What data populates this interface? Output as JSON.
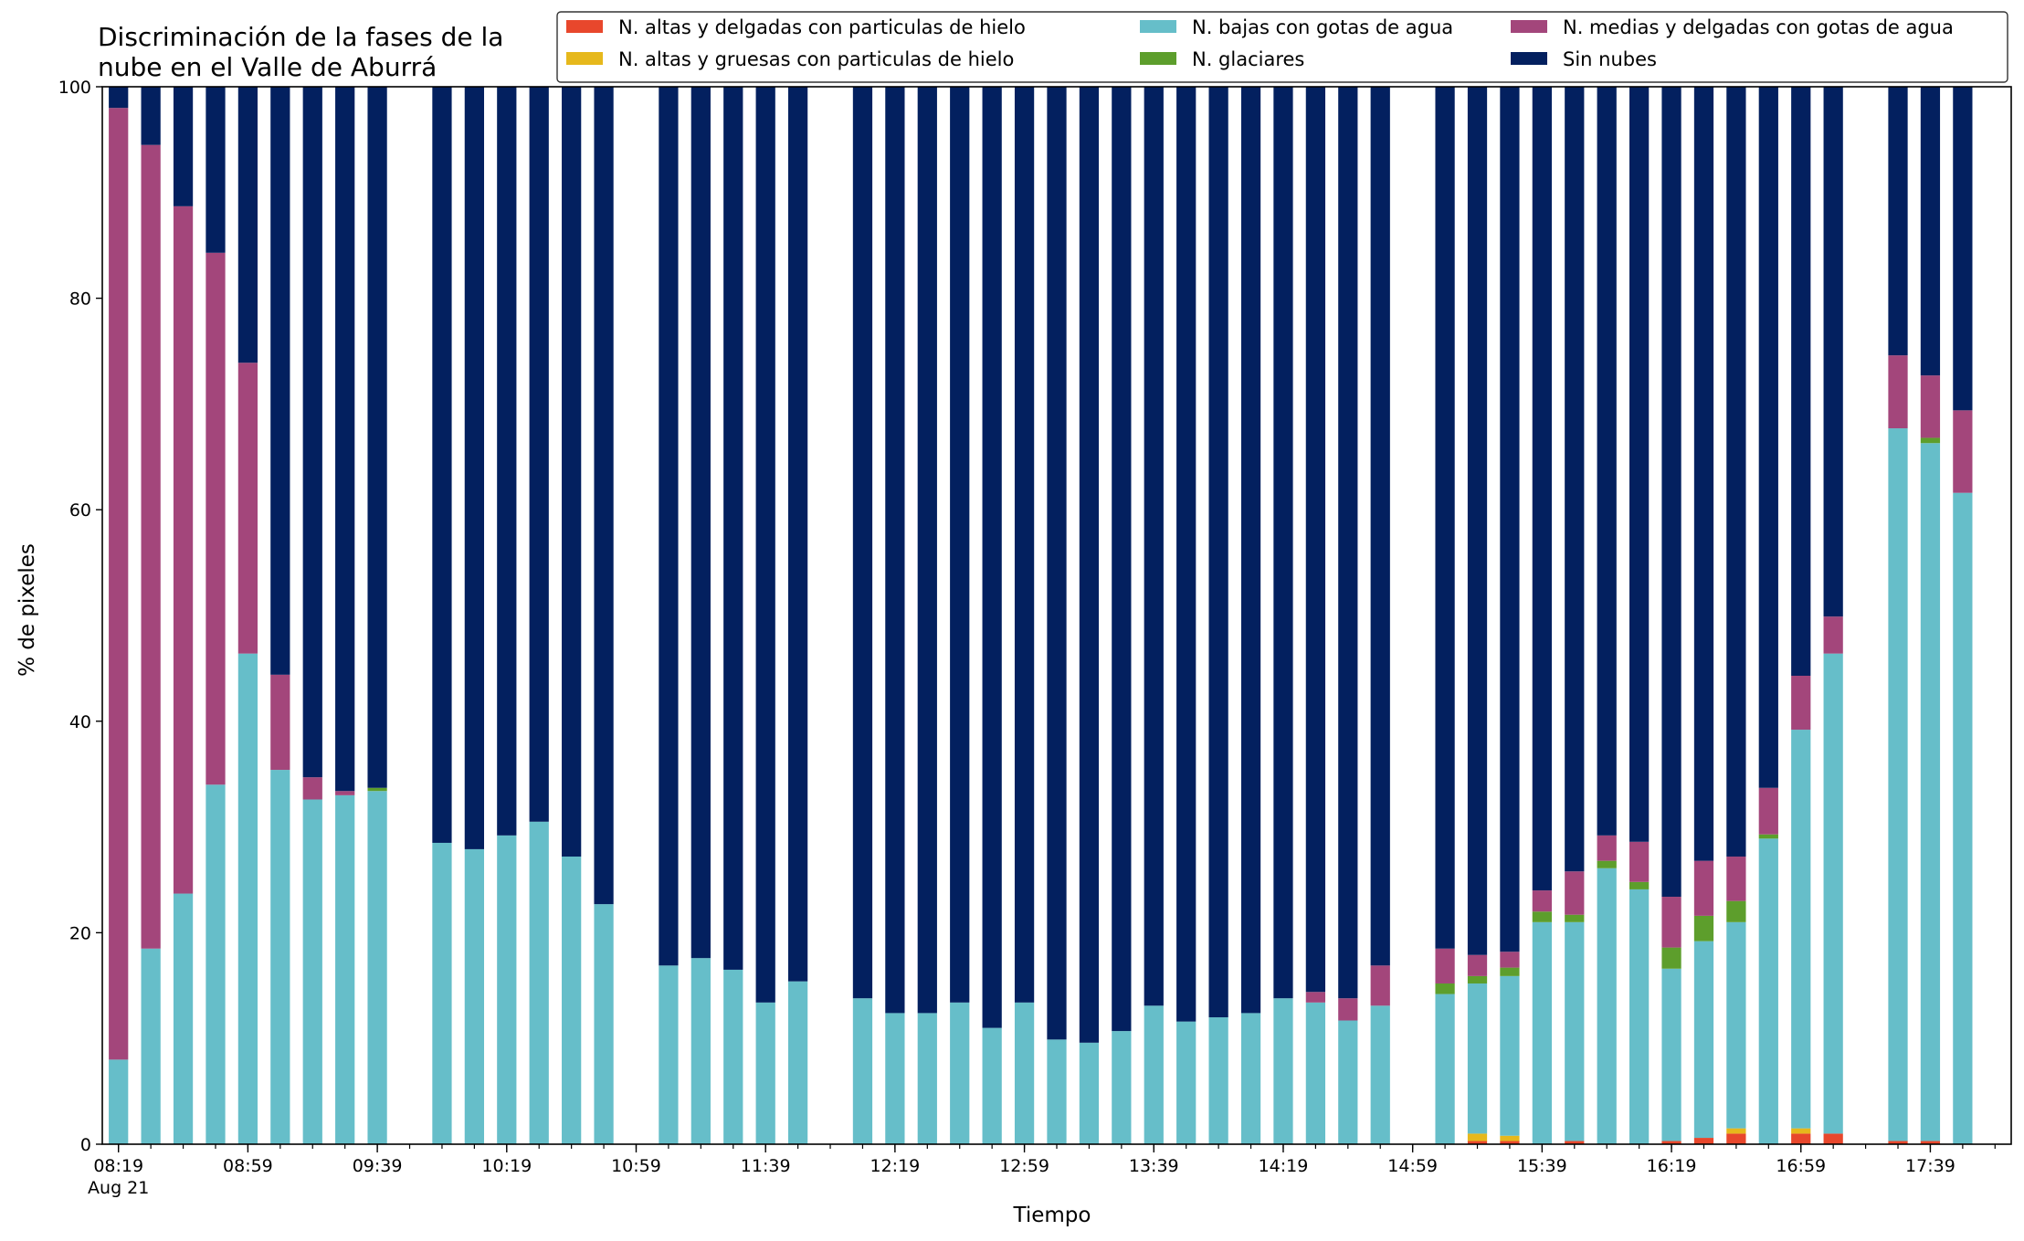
{
  "chart_data": {
    "type": "bar",
    "stacked": true,
    "title_lines": [
      "Discriminación de la fases de la",
      "nube en el Valle de Aburrá"
    ],
    "xlabel": "Tiempo",
    "ylabel": "% de pixeles",
    "ylim": [
      0,
      100
    ],
    "yticks": [
      0,
      20,
      40,
      60,
      80,
      100
    ],
    "ytick_labels": [
      "0",
      "20",
      "40",
      "60",
      "80",
      "100"
    ],
    "xlim": [
      "08:14",
      "18:04"
    ],
    "bar_width_minutes": 6,
    "xtick_labels": [
      {
        "time": "08:19",
        "label": "08:19",
        "sublabel": "Aug 21"
      },
      {
        "time": "08:59",
        "label": "08:59"
      },
      {
        "time": "09:39",
        "label": "09:39"
      },
      {
        "time": "10:19",
        "label": "10:19"
      },
      {
        "time": "10:59",
        "label": "10:59"
      },
      {
        "time": "11:39",
        "label": "11:39"
      },
      {
        "time": "12:19",
        "label": "12:19"
      },
      {
        "time": "12:59",
        "label": "12:59"
      },
      {
        "time": "13:39",
        "label": "13:39"
      },
      {
        "time": "14:19",
        "label": "14:19"
      },
      {
        "time": "14:59",
        "label": "14:59"
      },
      {
        "time": "15:39",
        "label": "15:39"
      },
      {
        "time": "16:19",
        "label": "16:19"
      },
      {
        "time": "16:59",
        "label": "16:59"
      },
      {
        "time": "17:39",
        "label": "17:39"
      }
    ],
    "minor_tick_step_minutes": 10,
    "legend_position": "top-right",
    "legend_columns": 3,
    "series": [
      {
        "name": "N. altas y delgadas con particulas de hielo",
        "color": "#e8472c"
      },
      {
        "name": "N. altas y gruesas con particulas de hielo",
        "color": "#e6b81c"
      },
      {
        "name": "N. bajas con gotas de agua",
        "color": "#66bec9"
      },
      {
        "name": "N. glaciares",
        "color": "#5d9e2c"
      },
      {
        "name": "N. medias y delgadas con gotas de agua",
        "color": "#a3467b"
      },
      {
        "name": "Sin nubes",
        "color": "#03205f"
      }
    ],
    "bars": [
      {
        "time": "08:19",
        "values": [
          0,
          0,
          8.0,
          0,
          90.0,
          2.0
        ]
      },
      {
        "time": "08:29",
        "values": [
          0,
          0,
          18.5,
          0,
          76.0,
          5.5
        ]
      },
      {
        "time": "08:39",
        "values": [
          0,
          0,
          23.7,
          0,
          65.0,
          11.3
        ]
      },
      {
        "time": "08:49",
        "values": [
          0,
          0,
          34.0,
          0,
          50.3,
          15.7
        ]
      },
      {
        "time": "08:59",
        "values": [
          0,
          0,
          46.4,
          0,
          27.5,
          26.1
        ]
      },
      {
        "time": "09:09",
        "values": [
          0,
          0,
          35.4,
          0,
          9.0,
          55.6
        ]
      },
      {
        "time": "09:19",
        "values": [
          0,
          0,
          32.6,
          0,
          2.1,
          65.3
        ]
      },
      {
        "time": "09:29",
        "values": [
          0,
          0,
          33.0,
          0,
          0.4,
          66.6
        ]
      },
      {
        "time": "09:39",
        "values": [
          0,
          0,
          33.4,
          0.3,
          0,
          66.3
        ]
      },
      {
        "time": "09:59",
        "values": [
          0,
          0,
          28.5,
          0,
          0,
          71.5
        ]
      },
      {
        "time": "10:09",
        "values": [
          0,
          0,
          27.9,
          0,
          0,
          72.1
        ]
      },
      {
        "time": "10:19",
        "values": [
          0,
          0,
          29.2,
          0,
          0,
          70.8
        ]
      },
      {
        "time": "10:29",
        "values": [
          0,
          0,
          30.5,
          0,
          0,
          69.5
        ]
      },
      {
        "time": "10:39",
        "values": [
          0,
          0,
          27.2,
          0,
          0,
          72.8
        ]
      },
      {
        "time": "10:49",
        "values": [
          0,
          0,
          22.7,
          0,
          0,
          77.3
        ]
      },
      {
        "time": "11:09",
        "values": [
          0,
          0,
          16.9,
          0,
          0,
          83.1
        ]
      },
      {
        "time": "11:19",
        "values": [
          0,
          0,
          17.6,
          0,
          0,
          82.4
        ]
      },
      {
        "time": "11:29",
        "values": [
          0,
          0,
          16.5,
          0,
          0,
          83.5
        ]
      },
      {
        "time": "11:39",
        "values": [
          0,
          0,
          13.4,
          0,
          0,
          86.6
        ]
      },
      {
        "time": "11:49",
        "values": [
          0,
          0,
          15.4,
          0,
          0,
          84.6
        ]
      },
      {
        "time": "12:09",
        "values": [
          0,
          0,
          13.8,
          0,
          0,
          86.2
        ]
      },
      {
        "time": "12:19",
        "values": [
          0,
          0,
          12.4,
          0,
          0,
          87.6
        ]
      },
      {
        "time": "12:29",
        "values": [
          0,
          0,
          12.4,
          0,
          0,
          87.6
        ]
      },
      {
        "time": "12:39",
        "values": [
          0,
          0,
          13.4,
          0,
          0,
          86.6
        ]
      },
      {
        "time": "12:49",
        "values": [
          0,
          0,
          11.0,
          0,
          0,
          89.0
        ]
      },
      {
        "time": "12:59",
        "values": [
          0,
          0,
          13.4,
          0,
          0,
          86.6
        ]
      },
      {
        "time": "13:09",
        "values": [
          0,
          0,
          9.9,
          0,
          0,
          90.1
        ]
      },
      {
        "time": "13:19",
        "values": [
          0,
          0,
          9.6,
          0,
          0,
          90.4
        ]
      },
      {
        "time": "13:29",
        "values": [
          0,
          0,
          10.7,
          0,
          0,
          89.3
        ]
      },
      {
        "time": "13:39",
        "values": [
          0,
          0,
          13.1,
          0,
          0,
          86.9
        ]
      },
      {
        "time": "13:49",
        "values": [
          0,
          0,
          11.6,
          0,
          0,
          88.4
        ]
      },
      {
        "time": "13:59",
        "values": [
          0,
          0,
          12.0,
          0,
          0,
          88.0
        ]
      },
      {
        "time": "14:09",
        "values": [
          0,
          0,
          12.4,
          0,
          0,
          87.6
        ]
      },
      {
        "time": "14:19",
        "values": [
          0,
          0,
          13.8,
          0,
          0,
          86.2
        ]
      },
      {
        "time": "14:29",
        "values": [
          0,
          0,
          13.4,
          0,
          1.0,
          85.6
        ]
      },
      {
        "time": "14:39",
        "values": [
          0,
          0,
          11.7,
          0,
          2.1,
          86.2
        ]
      },
      {
        "time": "14:49",
        "values": [
          0,
          0,
          13.1,
          0,
          3.8,
          83.1
        ]
      },
      {
        "time": "15:09",
        "values": [
          0,
          0,
          14.2,
          1.0,
          3.3,
          81.5
        ]
      },
      {
        "time": "15:19",
        "values": [
          0.3,
          0.7,
          14.2,
          0.7,
          2.0,
          82.1
        ]
      },
      {
        "time": "15:29",
        "values": [
          0.3,
          0.5,
          15.1,
          0.8,
          1.5,
          81.8
        ]
      },
      {
        "time": "15:39",
        "values": [
          0,
          0,
          21.0,
          1.0,
          2.0,
          76.0
        ]
      },
      {
        "time": "15:49",
        "values": [
          0.3,
          0,
          20.7,
          0.7,
          4.1,
          74.2
        ]
      },
      {
        "time": "15:59",
        "values": [
          0,
          0,
          26.1,
          0.7,
          2.4,
          70.8
        ]
      },
      {
        "time": "16:09",
        "values": [
          0,
          0,
          24.1,
          0.7,
          3.8,
          71.4
        ]
      },
      {
        "time": "16:19",
        "values": [
          0.3,
          0,
          16.3,
          2.0,
          4.8,
          76.6
        ]
      },
      {
        "time": "16:29",
        "values": [
          0.6,
          0,
          18.6,
          2.4,
          5.2,
          73.2
        ]
      },
      {
        "time": "16:39",
        "values": [
          1.0,
          0.5,
          19.5,
          2.0,
          4.2,
          72.8
        ]
      },
      {
        "time": "16:49",
        "values": [
          0,
          0,
          28.9,
          0.4,
          4.4,
          66.3
        ]
      },
      {
        "time": "16:59",
        "values": [
          1.0,
          0.5,
          37.7,
          0,
          5.1,
          55.7
        ]
      },
      {
        "time": "17:09",
        "values": [
          1.0,
          0,
          45.4,
          0,
          3.5,
          50.1
        ]
      },
      {
        "time": "17:29",
        "values": [
          0.3,
          0,
          67.4,
          0,
          6.9,
          25.4
        ]
      },
      {
        "time": "17:39",
        "values": [
          0.3,
          0,
          66.0,
          0.5,
          5.9,
          27.3
        ]
      },
      {
        "time": "17:49",
        "values": [
          0,
          0,
          61.6,
          0,
          7.8,
          30.6
        ]
      }
    ]
  }
}
